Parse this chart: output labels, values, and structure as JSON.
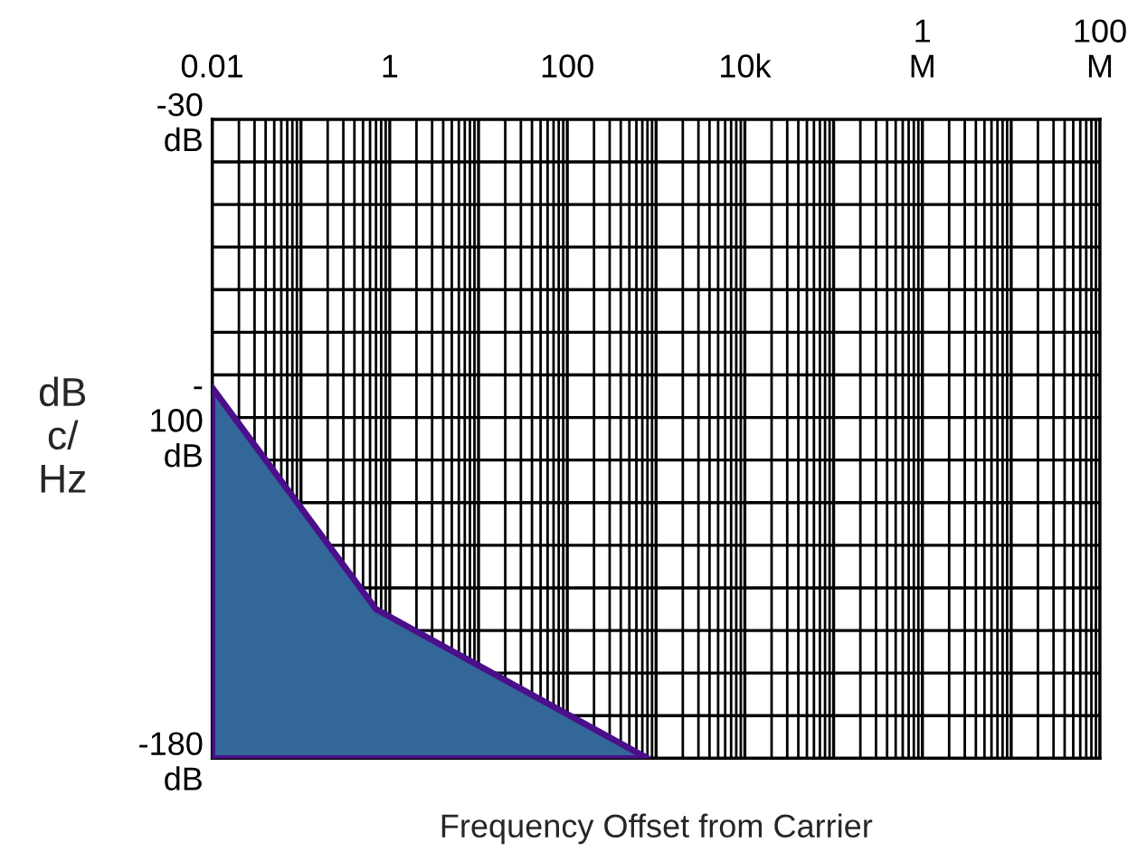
{
  "chart_data": {
    "type": "area",
    "xlabel": "Frequency Offset from Carrier",
    "ylabel": "dB\nc/\nHz",
    "log": "x",
    "x": [
      0.01,
      0.01,
      0.7,
      800
    ],
    "series": [
      {
        "color": "#336699",
        "values": [
          -180,
          -93,
          -145,
          -180
        ]
      }
    ],
    "xlim": [
      0.01,
      100000000
    ],
    "ylim": [
      -180,
      -30
    ],
    "xticks": [
      {
        "value": 0.01,
        "label": "0.01"
      },
      {
        "value": 0.1,
        "label": null
      },
      1,
      {
        "value": 10,
        "label": null
      },
      100,
      {
        "value": 1000,
        "label": null
      },
      {
        "value": 10000,
        "label": "10k"
      },
      {
        "value": 100000,
        "label": null
      },
      {
        "value": 1000000,
        "label": "1\nM"
      },
      {
        "value": 10000000,
        "label": null
      },
      {
        "value": 100000000,
        "label": "100\nM"
      }
    ],
    "yticks": [
      {
        "value": -180,
        "label": "-180\ndB"
      },
      {
        "value": -170,
        "label": null
      },
      {
        "value": -160,
        "label": null
      },
      {
        "value": -150,
        "label": null
      },
      {
        "value": -140,
        "label": null
      },
      {
        "value": -130,
        "label": null
      },
      {
        "value": -120,
        "label": null
      },
      {
        "value": -110,
        "label": null
      },
      {
        "value": -100,
        "label": "-\n100\ndB"
      },
      {
        "value": -90,
        "label": null
      },
      {
        "value": -80,
        "label": null
      },
      {
        "value": -70,
        "label": null
      },
      {
        "value": -60,
        "label": null
      },
      {
        "value": -50,
        "label": null
      },
      {
        "value": -40,
        "label": null
      },
      {
        "value": -30,
        "label": "-30\ndB"
      }
    ],
    "grid": true
  }
}
